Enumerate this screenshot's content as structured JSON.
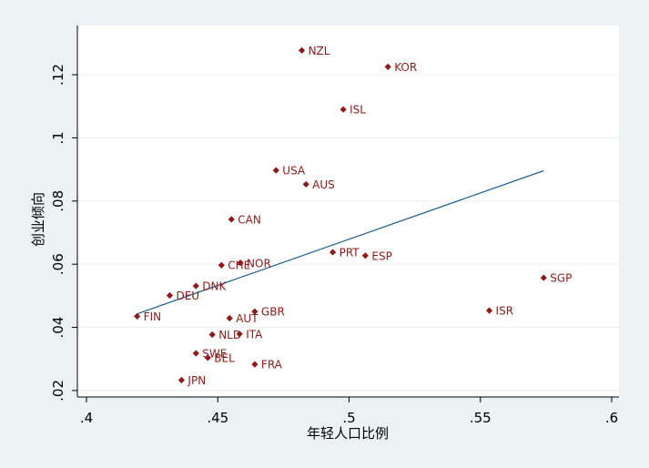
{
  "chart_data": {
    "type": "scatter",
    "title": "",
    "xlabel": "年轻人口比例",
    "ylabel": "创业倾向",
    "xlim": [
      0.4,
      0.6
    ],
    "ylim": [
      0.02,
      0.13
    ],
    "x_ticks": [
      {
        "value": 0.4,
        "label": ".4"
      },
      {
        "value": 0.45,
        "label": ".45"
      },
      {
        "value": 0.5,
        "label": ".5"
      },
      {
        "value": 0.55,
        "label": ".55"
      },
      {
        "value": 0.6,
        "label": ".6"
      }
    ],
    "y_ticks": [
      {
        "value": 0.02,
        "label": ".02"
      },
      {
        "value": 0.04,
        "label": ".04"
      },
      {
        "value": 0.06,
        "label": ".06"
      },
      {
        "value": 0.08,
        "label": ".08"
      },
      {
        "value": 0.1,
        "label": ".1"
      },
      {
        "value": 0.12,
        "label": ".12"
      }
    ],
    "grid": true,
    "points": [
      {
        "label": "NZL",
        "x": 0.482,
        "y": 0.1277
      },
      {
        "label": "KOR",
        "x": 0.5148,
        "y": 0.1225
      },
      {
        "label": "ISL",
        "x": 0.4978,
        "y": 0.109
      },
      {
        "label": "USA",
        "x": 0.4722,
        "y": 0.0897
      },
      {
        "label": "AUS",
        "x": 0.4836,
        "y": 0.0853
      },
      {
        "label": "CAN",
        "x": 0.4552,
        "y": 0.0742
      },
      {
        "label": "PRT",
        "x": 0.4938,
        "y": 0.0638
      },
      {
        "label": "ESP",
        "x": 0.5062,
        "y": 0.0627
      },
      {
        "label": "SGP",
        "x": 0.5741,
        "y": 0.0557
      },
      {
        "label": "NOR",
        "x": 0.4586,
        "y": 0.0604
      },
      {
        "label": "CHE",
        "x": 0.4514,
        "y": 0.0597
      },
      {
        "label": "DNK",
        "x": 0.4417,
        "y": 0.0531
      },
      {
        "label": "DEU",
        "x": 0.4317,
        "y": 0.0501
      },
      {
        "label": "FIN",
        "x": 0.4193,
        "y": 0.0435
      },
      {
        "label": "ISR",
        "x": 0.5534,
        "y": 0.0453
      },
      {
        "label": "GBR",
        "x": 0.4641,
        "y": 0.045
      },
      {
        "label": "AUT",
        "x": 0.4545,
        "y": 0.0429
      },
      {
        "label": "NLD",
        "x": 0.4479,
        "y": 0.0377
      },
      {
        "label": "ITA",
        "x": 0.4583,
        "y": 0.0379
      },
      {
        "label": "SWE",
        "x": 0.4417,
        "y": 0.0318
      },
      {
        "label": "BEL",
        "x": 0.4462,
        "y": 0.0304
      },
      {
        "label": "FRA",
        "x": 0.4641,
        "y": 0.0283
      },
      {
        "label": "JPN",
        "x": 0.4362,
        "y": 0.0233
      }
    ],
    "fit_line": {
      "x": [
        0.4193,
        0.5741
      ],
      "y": [
        0.0443,
        0.0896
      ]
    },
    "colors": {
      "marker": "#8b1a1a",
      "fit_line": "#1f5f8b",
      "background": "#eaf2f3",
      "plot_area": "#ffffff",
      "grid": "#eaf2f3",
      "axis": "#000000"
    }
  }
}
